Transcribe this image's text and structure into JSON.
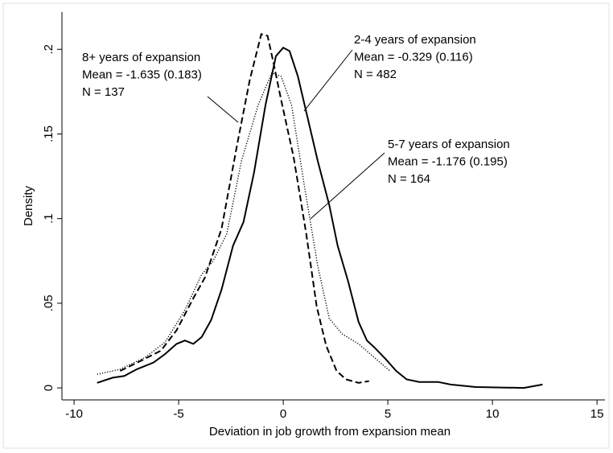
{
  "chart_data": {
    "type": "line",
    "xlabel": "Deviation in job growth from expansion mean",
    "ylabel": "Density",
    "xlim": [
      -10.58,
      15.38
    ],
    "ylim": [
      -0.0071,
      0.222
    ],
    "xticks": [
      -10,
      -5,
      0,
      5,
      10,
      15
    ],
    "yticks": [
      0,
      {
        "value": 0.05,
        "label": ".05"
      },
      {
        "value": 0.1,
        "label": ".1"
      },
      {
        "value": 0.15,
        "label": ".15"
      },
      {
        "value": 0.2,
        "label": ".2"
      }
    ],
    "grid": false,
    "series": [
      {
        "color": "#000000",
        "dash": "solid",
        "x": [
          -8.9,
          -8.15,
          -7.6,
          -7.0,
          -6.2,
          -5.65,
          -5.1,
          -4.7,
          -4.3,
          -3.9,
          -3.45,
          -2.95,
          -2.4,
          -1.9,
          -1.4,
          -0.85,
          -0.35,
          0.0,
          0.3,
          0.7,
          1.1,
          1.65,
          2.2,
          2.6,
          3.1,
          3.6,
          4.0,
          4.35,
          4.9,
          5.4,
          5.9,
          6.5,
          7.4,
          8.0,
          9.2,
          11.5,
          12.4
        ],
        "values": [
          0.003,
          0.006,
          0.007,
          0.011,
          0.015,
          0.02,
          0.026,
          0.028,
          0.026,
          0.03,
          0.04,
          0.058,
          0.084,
          0.098,
          0.127,
          0.167,
          0.196,
          0.201,
          0.199,
          0.184,
          0.163,
          0.134,
          0.108,
          0.084,
          0.063,
          0.039,
          0.028,
          0.024,
          0.017,
          0.01,
          0.005,
          0.0035,
          0.0035,
          0.002,
          0.0005,
          0.0,
          0.002
        ]
      },
      {
        "color": "#000000",
        "dash": "dotted",
        "x": [
          -8.9,
          -7.8,
          -6.6,
          -5.65,
          -4.7,
          -3.9,
          -3.35,
          -2.7,
          -2.0,
          -1.2,
          -0.55,
          -0.1,
          0.4,
          1.0,
          1.65,
          2.2,
          2.8,
          3.6,
          4.35,
          5.1
        ],
        "values": [
          0.008,
          0.011,
          0.018,
          0.027,
          0.046,
          0.067,
          0.075,
          0.091,
          0.134,
          0.167,
          0.186,
          0.184,
          0.167,
          0.12,
          0.072,
          0.041,
          0.032,
          0.026,
          0.018,
          0.01
        ]
      },
      {
        "color": "#000000",
        "dash": "dashed",
        "x": [
          -7.8,
          -6.8,
          -5.85,
          -5.1,
          -4.3,
          -3.75,
          -2.95,
          -2.2,
          -1.6,
          -1.05,
          -0.75,
          -0.45,
          -0.1,
          0.5,
          1.1,
          1.6,
          2.05,
          2.55,
          3.0,
          3.6,
          4.1
        ],
        "values": [
          0.01,
          0.016,
          0.022,
          0.034,
          0.053,
          0.065,
          0.094,
          0.144,
          0.182,
          0.209,
          0.208,
          0.191,
          0.17,
          0.136,
          0.091,
          0.048,
          0.025,
          0.01,
          0.005,
          0.003,
          0.004
        ]
      }
    ],
    "annotations": [
      {
        "lines": [
          "8+ years of expansion",
          "Mean = -1.635 (0.183)",
          "N = 137"
        ]
      },
      {
        "lines": [
          "2-4 years of expansion",
          "Mean = -0.329 (0.116)",
          "N = 482"
        ]
      },
      {
        "lines": [
          "5-7 years of expansion",
          "Mean = -1.176 (0.195)",
          "N = 164"
        ]
      }
    ]
  }
}
